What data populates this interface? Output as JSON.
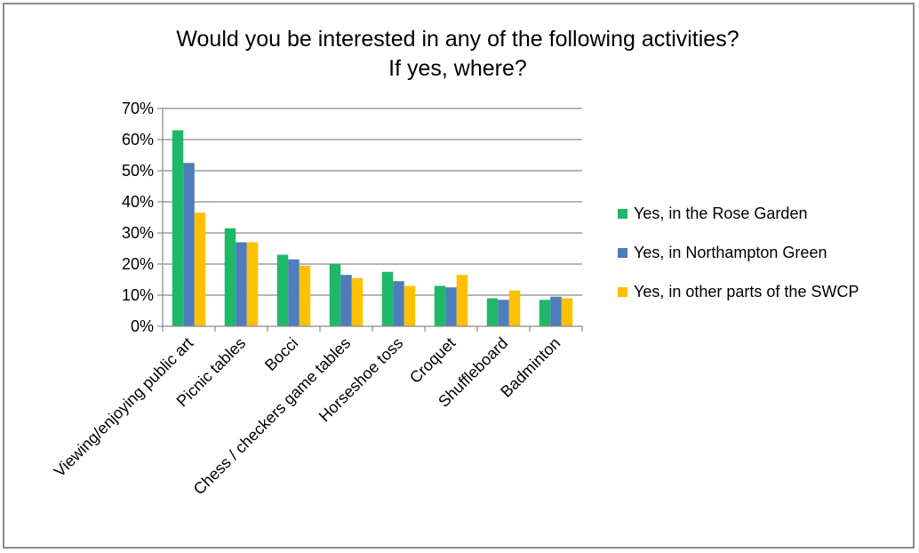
{
  "chart_data": {
    "type": "bar",
    "title": "Would you be interested in any of the following activities?",
    "subtitle": "If yes, where?",
    "categories": [
      "Viewing/enjoying public art",
      "Picnic tables",
      "Bocci",
      "Chess / checkers game tables",
      "Horseshoe toss",
      "Croquet",
      "Shuffleboard",
      "Badminton"
    ],
    "series": [
      {
        "name": "Yes, in the Rose Garden",
        "color": "#1fb868",
        "values": [
          63,
          31.5,
          23,
          20,
          17.5,
          13,
          9,
          8.5
        ]
      },
      {
        "name": "Yes, in Northampton Green",
        "color": "#4f7cba",
        "values": [
          52.5,
          27,
          21.5,
          16.5,
          14.5,
          12.5,
          8.5,
          9.5
        ]
      },
      {
        "name": "Yes, in other parts of the SWCP",
        "color": "#ffc000",
        "values": [
          36.5,
          27,
          19.5,
          15.5,
          13,
          16.5,
          11.5,
          9
        ]
      }
    ],
    "yticks": [
      "0%",
      "10%",
      "20%",
      "30%",
      "40%",
      "50%",
      "60%",
      "70%"
    ],
    "ylim": [
      0,
      70
    ],
    "grid": true,
    "legend_position": "right"
  }
}
